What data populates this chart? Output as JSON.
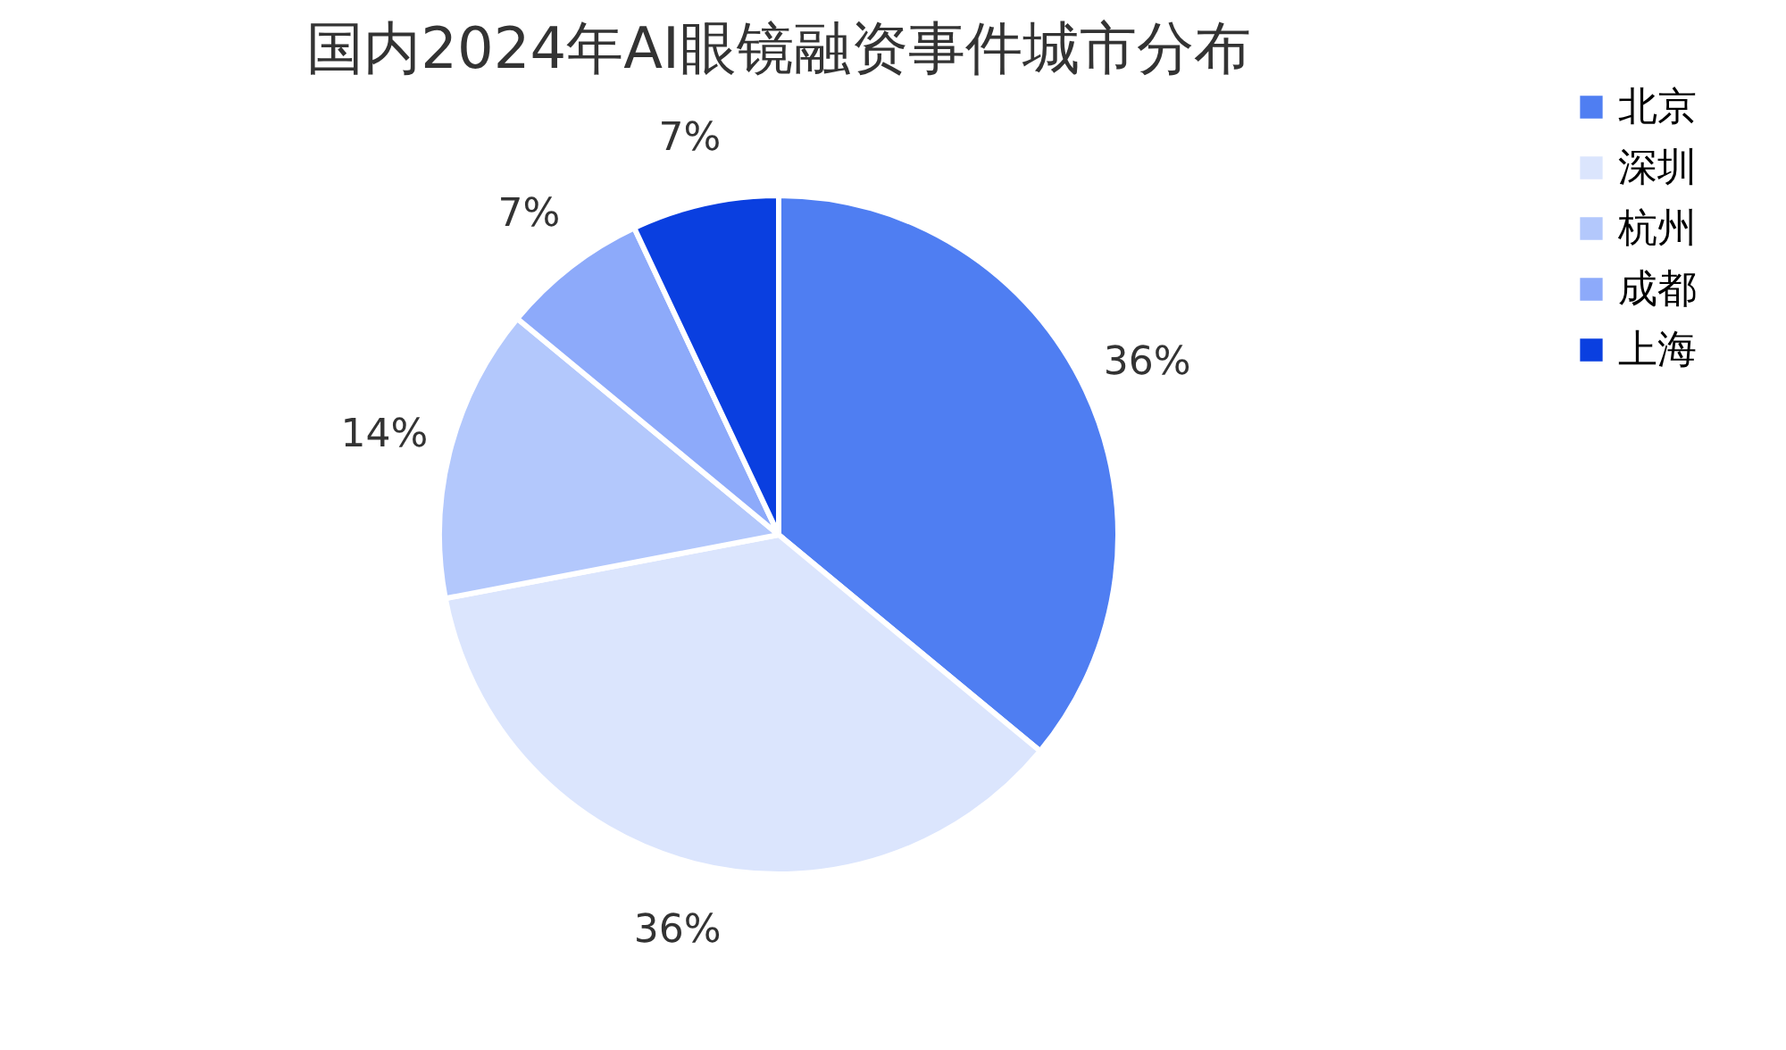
{
  "chart_data": {
    "type": "pie",
    "title": "国内2024年AI眼镜融资事件城市分布",
    "categories": [
      "北京",
      "深圳",
      "杭州",
      "成都",
      "上海"
    ],
    "values": [
      36,
      36,
      14,
      7,
      7
    ],
    "value_labels": [
      "36%",
      "36%",
      "14%",
      "7%",
      "7%"
    ],
    "colors": [
      "#4f7ef2",
      "#dbe5fd",
      "#b3c8fc",
      "#8daafa",
      "#0a3fe0"
    ],
    "legend": "right"
  }
}
